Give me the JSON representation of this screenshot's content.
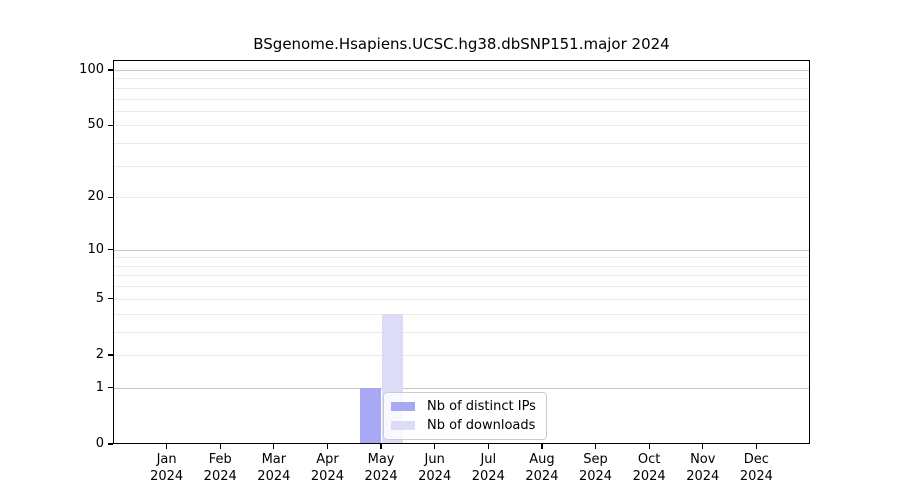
{
  "chart_data": {
    "type": "bar",
    "title": "BSgenome.Hsapiens.UCSC.hg38.dbSNP151.major 2024",
    "categories": [
      "Jan",
      "Feb",
      "Mar",
      "Apr",
      "May",
      "Jun",
      "Jul",
      "Aug",
      "Sep",
      "Oct",
      "Nov",
      "Dec"
    ],
    "x_tick_year": "2024",
    "series": [
      {
        "name": "Nb of distinct IPs",
        "color": "#a8a8f5",
        "values": [
          0,
          0,
          0,
          0,
          1,
          0,
          0,
          0,
          0,
          0,
          0,
          0
        ]
      },
      {
        "name": "Nb of downloads",
        "color": "#dcdcf6",
        "values": [
          0,
          0,
          0,
          0,
          4,
          0,
          0,
          0,
          0,
          0,
          0,
          0
        ]
      }
    ],
    "yscale": "log1p",
    "ylim": [
      0,
      113
    ],
    "y_ticks": [
      0,
      1,
      2,
      5,
      10,
      20,
      50,
      100
    ],
    "y_major_gridlines": [
      1,
      10,
      100
    ],
    "y_minor_gridlines": [
      2,
      3,
      4,
      5,
      6,
      7,
      8,
      9,
      20,
      30,
      40,
      50,
      60,
      70,
      80,
      90
    ],
    "grid": true,
    "legend_position": "inside bottom-center"
  },
  "colors": {
    "bar_distinct_ips": "#a8a8f5",
    "bar_downloads": "#dcdcf6",
    "grid_major": "#c6c6c6",
    "grid_minor": "#ebebeb",
    "spine": "#000000",
    "legend_border": "#cccccc",
    "background": "#ffffff"
  }
}
